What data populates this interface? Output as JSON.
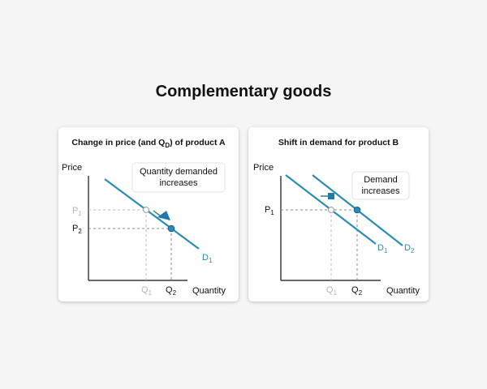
{
  "title": "Complementary goods",
  "colors": {
    "curve": "#2a8cb8",
    "curve_dark": "#1f78a6",
    "text": "#111111",
    "muted": "#b5b5b5",
    "dash": "#8a8a8a"
  },
  "panel_a": {
    "title_main": "Change in price (and Q",
    "title_sub": "D",
    "title_rest": ") of product A",
    "y_axis_label": "Price",
    "x_axis_label": "Quantity",
    "callout_line1": "Quantity demanded",
    "callout_line2": "increases",
    "p1_main": "P",
    "p1_sub": "1",
    "p2_main": "P",
    "p2_sub": "2",
    "q1_main": "Q",
    "q1_sub": "1",
    "q2_main": "Q",
    "q2_sub": "2",
    "curve_main": "D",
    "curve_sub": "1",
    "arrow_icon": "diagonal-arrow-icon"
  },
  "panel_b": {
    "title": "Shift in demand for product B",
    "y_axis_label": "Price",
    "x_axis_label": "Quantity",
    "callout_line1": "Demand",
    "callout_line2": "increases",
    "p1_main": "P",
    "p1_sub": "1",
    "q1_main": "Q",
    "q1_sub": "1",
    "q2_main": "Q",
    "q2_sub": "2",
    "d1_main": "D",
    "d1_sub": "1",
    "d2_main": "D",
    "d2_sub": "2",
    "arrow_icon": "right-arrow-icon"
  }
}
